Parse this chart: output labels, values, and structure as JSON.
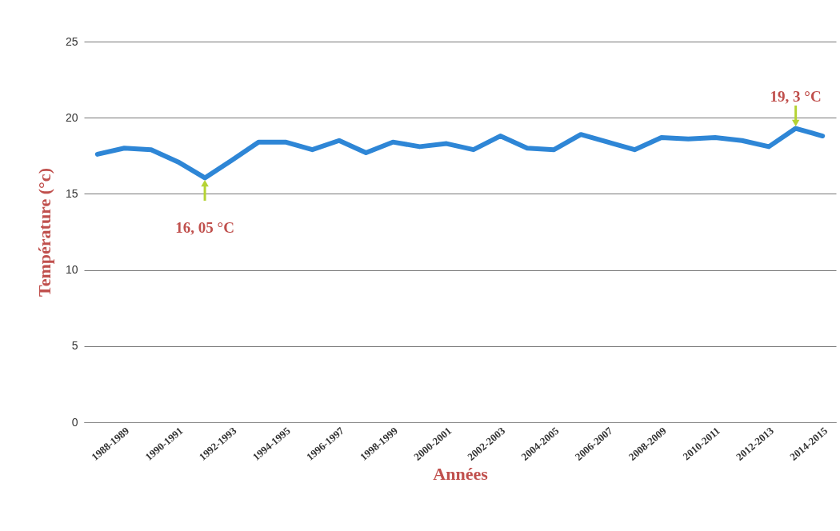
{
  "chart_data": {
    "type": "line",
    "xlabel": "Années",
    "ylabel": "Température (°c)",
    "categories": [
      null,
      "1988-1989",
      null,
      "1990-1991",
      null,
      "1992-1993",
      null,
      "1994-1995",
      null,
      "1996-1997",
      null,
      "1998-1999",
      null,
      "2000-2001",
      null,
      "2002-2003",
      null,
      "2004-2005",
      null,
      "2006-2007",
      null,
      "2008-2009",
      null,
      "2010-2011",
      null,
      "2012-2013",
      null,
      "2014-2015"
    ],
    "series": [
      {
        "color": "#2e86d6",
        "values": [
          17.6,
          18.0,
          17.9,
          17.1,
          16.05,
          17.2,
          18.4,
          18.4,
          17.9,
          18.5,
          17.7,
          18.4,
          18.1,
          18.3,
          17.9,
          18.8,
          18.0,
          17.9,
          18.9,
          18.4,
          17.9,
          18.7,
          18.6,
          18.7,
          18.5,
          18.1,
          19.3,
          18.8
        ]
      }
    ],
    "ylim": [
      0,
      25
    ],
    "yticks": [
      0,
      5,
      10,
      15,
      20,
      25
    ],
    "grid": "y",
    "annotations": [
      {
        "text": "16, 05 °C",
        "y": 16.05
      },
      {
        "text": "19, 3 °C",
        "y": 19.3
      }
    ]
  }
}
